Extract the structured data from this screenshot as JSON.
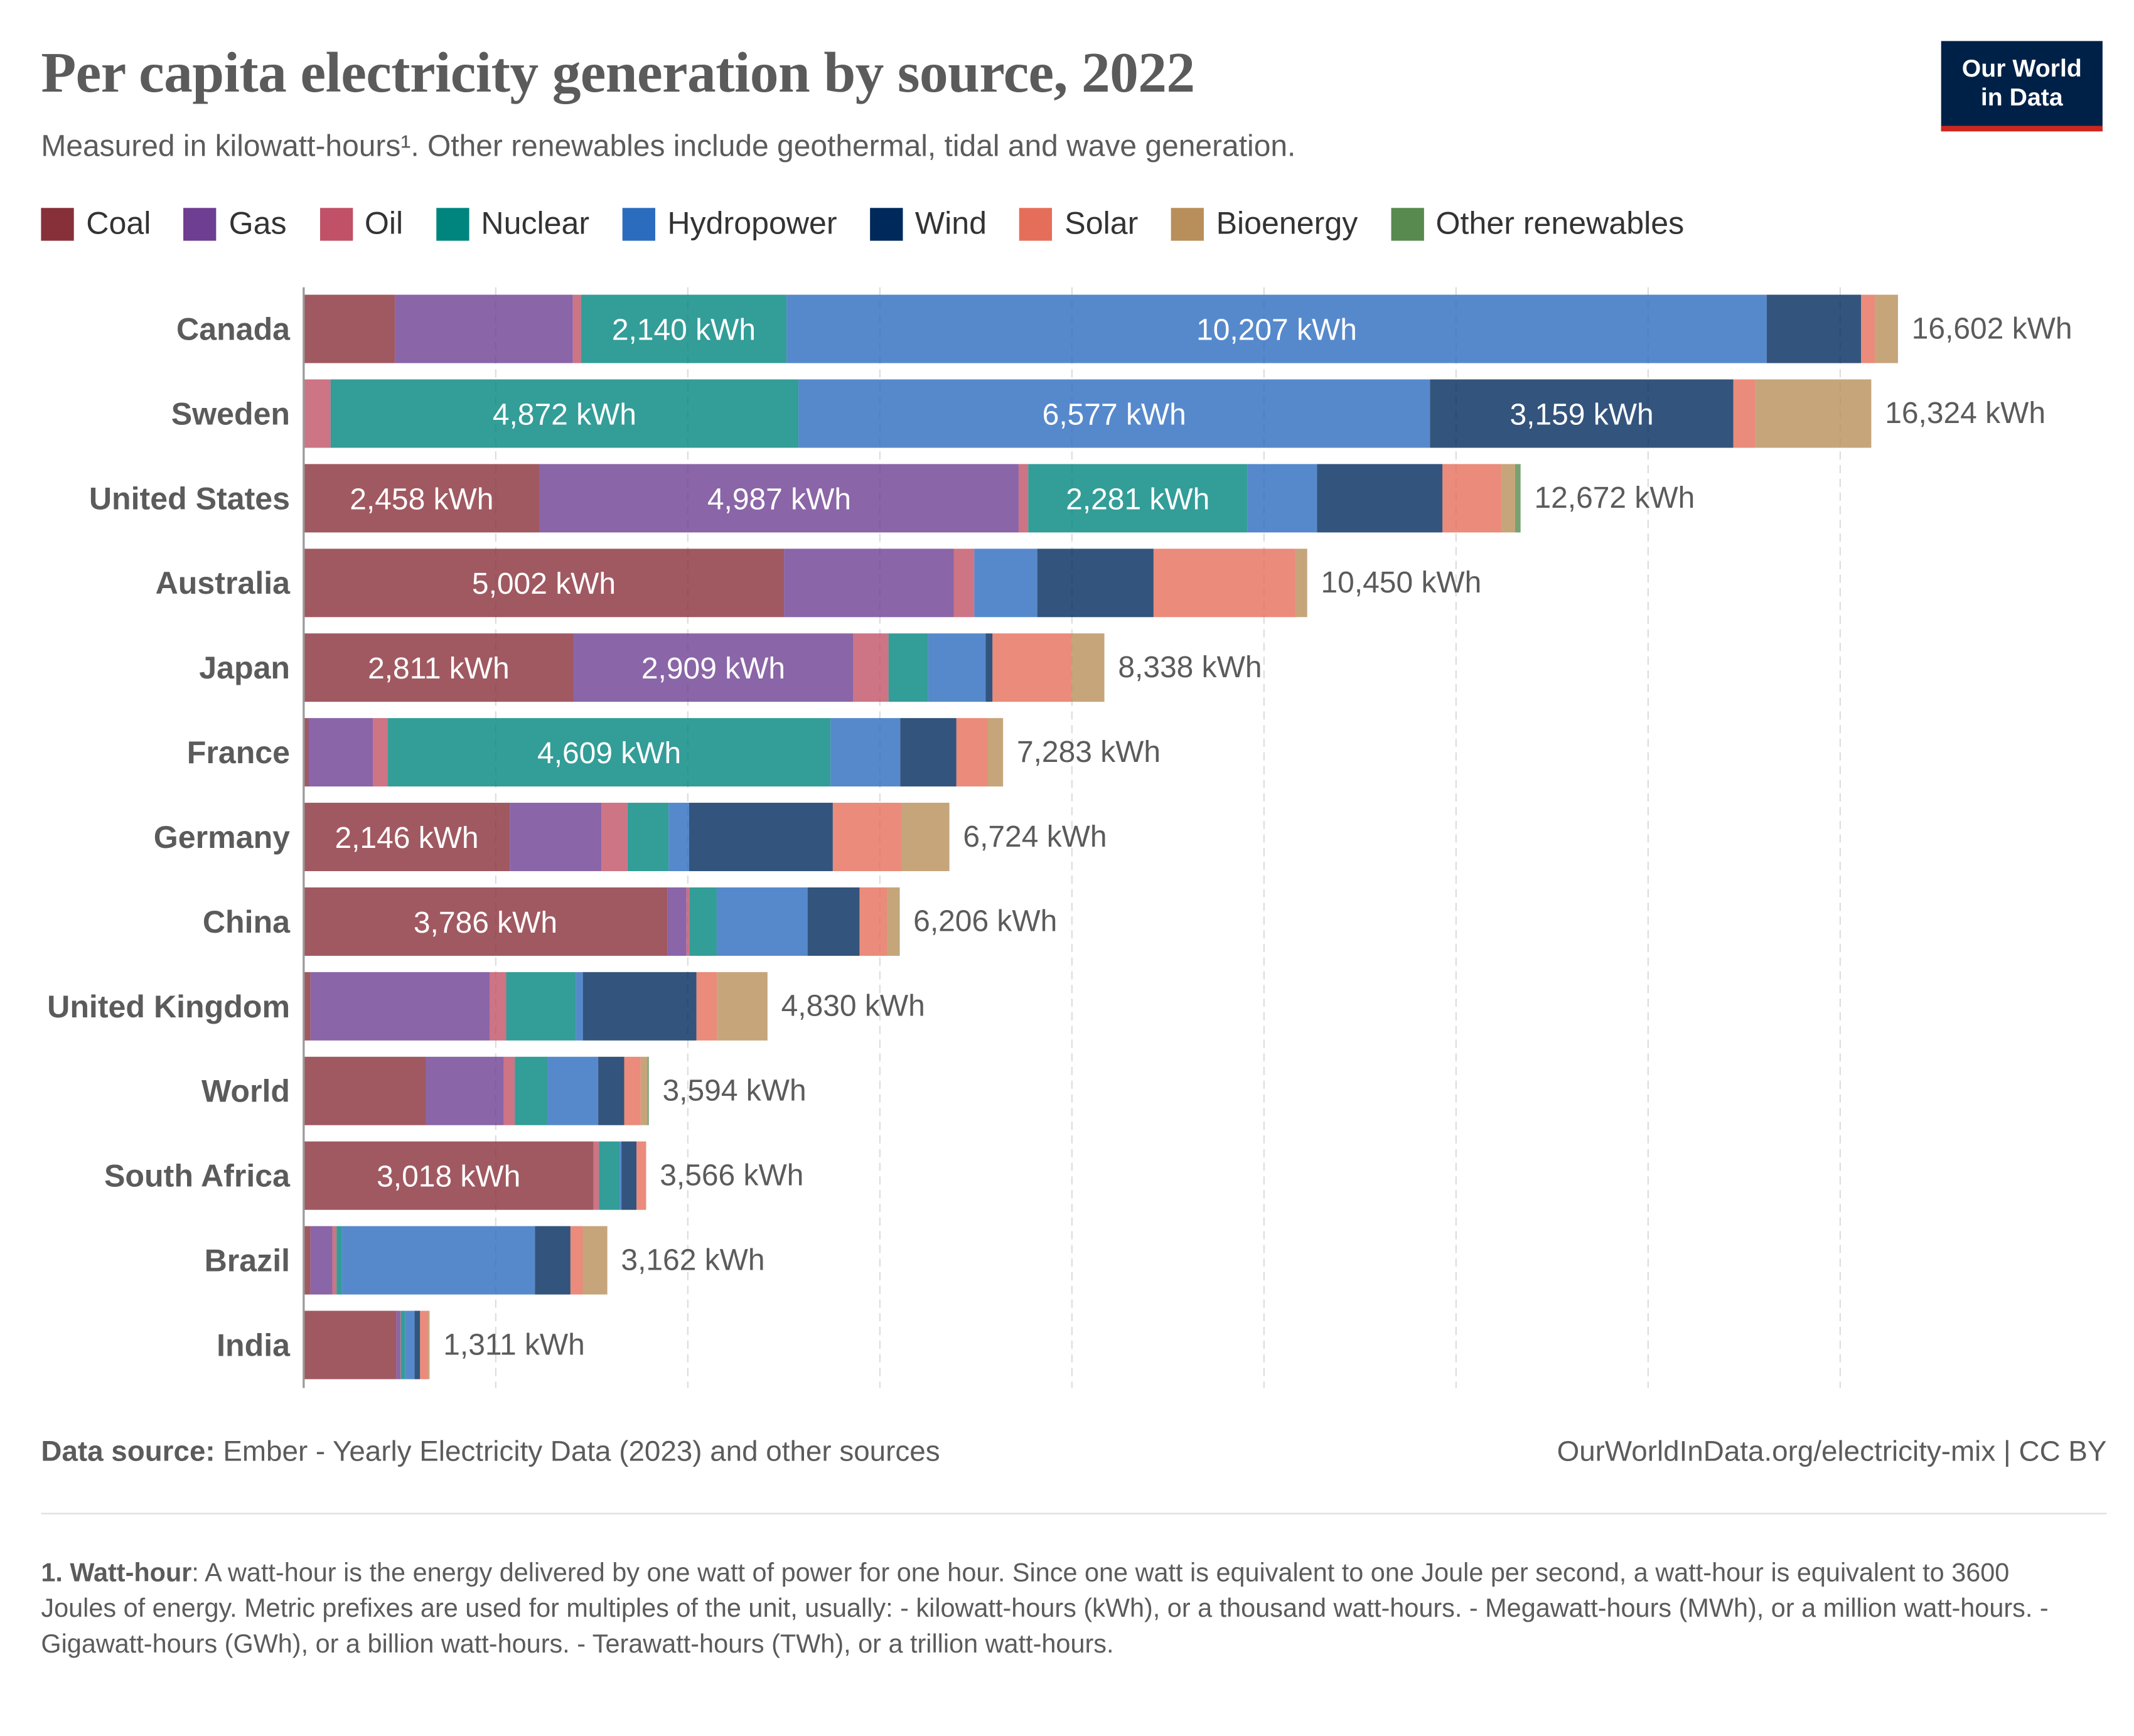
{
  "title": "Per capita electricity generation by source, 2022",
  "subtitle": "Measured in kilowatt-hours¹. Other renewables include geothermal, tidal and wave generation.",
  "logo": {
    "line1": "Our World",
    "line2": "in Data"
  },
  "footer": {
    "source_label": "Data source:",
    "source_text": " Ember - Yearly Electricity Data (2023) and other sources",
    "url": "OurWorldInData.org/electricity-mix | CC BY"
  },
  "footnote": {
    "term": "1. Watt-hour",
    "text": ": A watt-hour is the energy delivered by one watt of power for one hour. Since one watt is equivalent to one Joule per second, a watt-hour is equivalent to 3600 Joules of energy. Metric prefixes are used for multiples of the unit, usually: - kilowatt-hours (kWh), or a thousand watt-hours. - Megawatt-hours (MWh), or a million watt-hours. - Gigawatt-hours (GWh), or a billion watt-hours. - Terawatt-hours (TWh), or a trillion watt-hours."
  },
  "chart_data": {
    "type": "bar",
    "orientation": "horizontal",
    "stacked": true,
    "unit": "kWh",
    "xlim": [
      0,
      16602
    ],
    "grid": true,
    "grid_step": 2000,
    "legend_position": "top",
    "categories": [
      "Canada",
      "Sweden",
      "United States",
      "Australia",
      "Japan",
      "France",
      "Germany",
      "China",
      "United Kingdom",
      "World",
      "South Africa",
      "Brazil",
      "India"
    ],
    "totals": [
      "16,602 kWh",
      "16,324 kWh",
      "12,672 kWh",
      "10,450 kWh",
      "8,338 kWh",
      "7,283 kWh",
      "6,724 kWh",
      "6,206 kWh",
      "4,830 kWh",
      "3,594 kWh",
      "3,566 kWh",
      "3,162 kWh",
      "1,311 kWh"
    ],
    "series": [
      {
        "name": "Coal",
        "color": "#883039",
        "values": [
          950,
          0,
          2458,
          5002,
          2811,
          50,
          2146,
          3786,
          71,
          1272,
          3018,
          71,
          964
        ]
      },
      {
        "name": "Gas",
        "color": "#6d3e91",
        "values": [
          1853,
          10,
          4987,
          1767,
          2909,
          670,
          955,
          200,
          1867,
          812,
          0,
          228,
          43
        ]
      },
      {
        "name": "Oil",
        "color": "#c05167",
        "values": [
          85,
          270,
          100,
          214,
          370,
          157,
          271,
          30,
          171,
          114,
          57,
          43,
          5
        ]
      },
      {
        "name": "Nuclear",
        "color": "#00847e",
        "values": [
          2140,
          4872,
          2281,
          0,
          413,
          4609,
          428,
          285,
          727,
          342,
          214,
          57,
          43
        ]
      },
      {
        "name": "Hydropower",
        "color": "#2c6cbf",
        "values": [
          10207,
          6577,
          727,
          656,
          599,
          727,
          214,
          946,
          71,
          527,
          20,
          2009,
          100
        ]
      },
      {
        "name": "Wind",
        "color": "#00295b",
        "values": [
          983,
          3159,
          1306,
          1211,
          71,
          584,
          1496,
          541,
          1183,
          271,
          157,
          370,
          57
        ]
      },
      {
        "name": "Solar",
        "color": "#e56e5a",
        "values": [
          142,
          228,
          613,
          1482,
          827,
          328,
          713,
          285,
          214,
          171,
          100,
          128,
          85
        ]
      },
      {
        "name": "Bioenergy",
        "color": "#b88e5a",
        "values": [
          242,
          1208,
          143,
          118,
          338,
          158,
          501,
          128,
          526,
          71,
          0,
          256,
          14
        ]
      },
      {
        "name": "Other renewables",
        "color": "#58894e",
        "values": [
          0,
          0,
          57,
          0,
          0,
          0,
          0,
          5,
          0,
          14,
          0,
          0,
          0
        ]
      }
    ],
    "data_labels": [
      [
        "",
        "",
        "",
        "2,140 kWh",
        "10,207 kWh",
        "",
        "",
        "",
        ""
      ],
      [
        "",
        "",
        "",
        "4,872 kWh",
        "6,577 kWh",
        "3,159 kWh",
        "",
        "",
        ""
      ],
      [
        "2,458 kWh",
        "4,987 kWh",
        "",
        "2,281 kWh",
        "",
        "",
        "",
        "",
        ""
      ],
      [
        "5,002 kWh",
        "",
        "",
        "",
        "",
        "",
        "",
        "",
        ""
      ],
      [
        "2,811 kWh",
        "2,909 kWh",
        "",
        "",
        "",
        "",
        "",
        "",
        ""
      ],
      [
        "",
        "",
        "",
        "4,609 kWh",
        "",
        "",
        "",
        "",
        ""
      ],
      [
        "2,146 kWh",
        "",
        "",
        "",
        "",
        "",
        "",
        "",
        ""
      ],
      [
        "3,786 kWh",
        "",
        "",
        "",
        "",
        "",
        "",
        "",
        ""
      ],
      [
        "",
        "",
        "",
        "",
        "",
        "",
        "",
        "",
        ""
      ],
      [
        "",
        "",
        "",
        "",
        "",
        "",
        "",
        "",
        ""
      ],
      [
        "3,018 kWh",
        "",
        "",
        "",
        "",
        "",
        "",
        "",
        ""
      ],
      [
        "",
        "",
        "",
        "",
        "",
        "",
        "",
        "",
        ""
      ],
      [
        "",
        "",
        "",
        "",
        "",
        "",
        "",
        "",
        ""
      ]
    ]
  }
}
